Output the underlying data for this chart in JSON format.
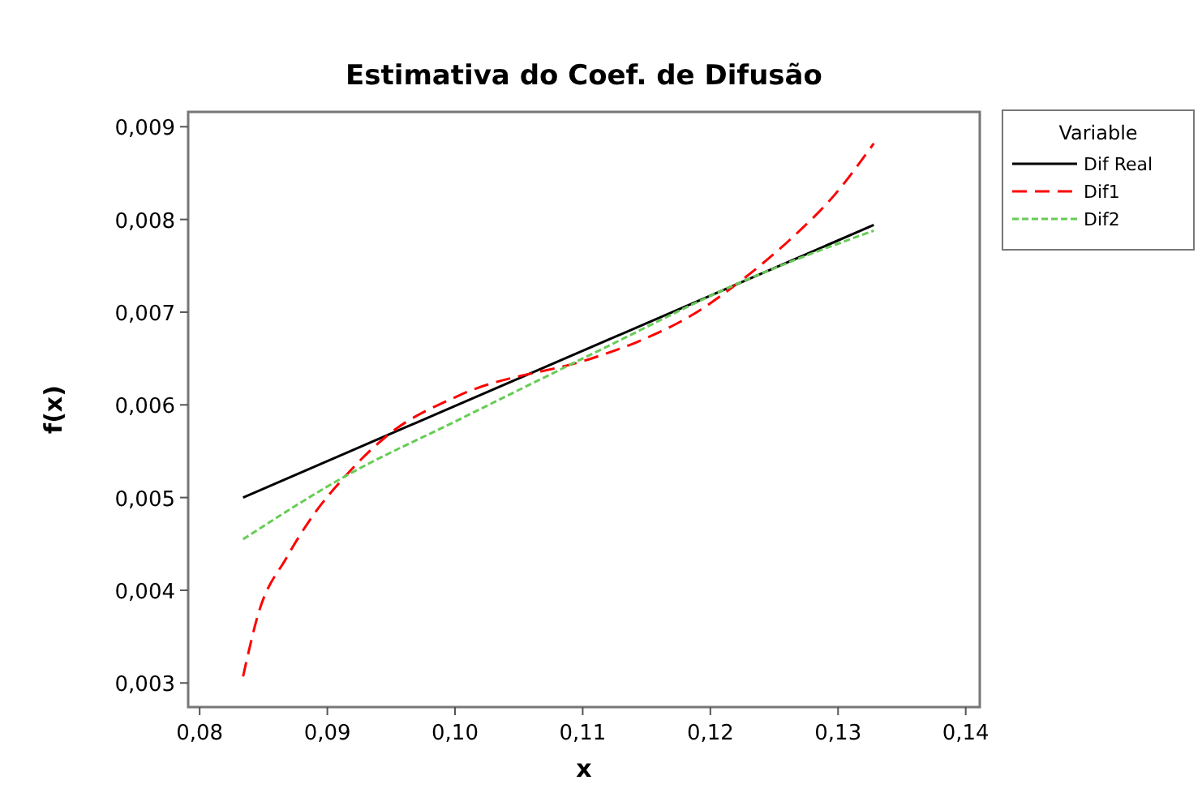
{
  "chart_data": {
    "type": "line",
    "title": "Estimativa do Coef. de Difusão",
    "xlabel": "x",
    "ylabel": "f(x)",
    "legend_title": "Variable",
    "legend": "right",
    "marker": "none",
    "xlim": [
      0.0791,
      0.1411
    ],
    "xticks": [
      {
        "value": 0.08,
        "label": "0,08"
      },
      {
        "value": 0.09,
        "label": "0,09"
      },
      {
        "value": 0.1,
        "label": "0,10"
      },
      {
        "value": 0.11,
        "label": "0,11"
      },
      {
        "value": 0.12,
        "label": "0,12"
      },
      {
        "value": 0.13,
        "label": "0,13"
      },
      {
        "value": 0.14,
        "label": "0,14"
      }
    ],
    "ylim": [
      0.00274,
      0.00916
    ],
    "yticks": [
      {
        "value": 0.003,
        "label": "0,003"
      },
      {
        "value": 0.004,
        "label": "0,004"
      },
      {
        "value": 0.005,
        "label": "0,005"
      },
      {
        "value": 0.006,
        "label": "0,006"
      },
      {
        "value": 0.007,
        "label": "0,007"
      },
      {
        "value": 0.008,
        "label": "0,008"
      },
      {
        "value": 0.009,
        "label": "0,009"
      }
    ],
    "series": [
      {
        "name": "Dif Real",
        "color": "#000000",
        "line_style": "solid",
        "x": [
          0.0834,
          0.1328
        ],
        "values": [
          0.005,
          0.00794
        ]
      },
      {
        "name": "Dif1",
        "color": "#ff0000",
        "line_style": "dashed",
        "x": [
          0.0834,
          0.0846,
          0.0868,
          0.0889,
          0.0914,
          0.0948,
          0.1003,
          0.1109,
          0.1143,
          0.1187,
          0.1225,
          0.1263,
          0.1297,
          0.1328
        ],
        "values": [
          0.00307,
          0.00375,
          0.00435,
          0.00481,
          0.00523,
          0.00568,
          0.0061,
          0.00651,
          0.00668,
          0.00698,
          0.00735,
          0.00779,
          0.00826,
          0.00882
        ]
      },
      {
        "name": "Dif2",
        "color": "#66cc55",
        "line_style": "dotted",
        "x": [
          0.0834,
          0.0914,
          0.1003,
          0.1109,
          0.1225,
          0.1328
        ],
        "values": [
          0.00455,
          0.00523,
          0.00584,
          0.00656,
          0.00733,
          0.00788
        ]
      }
    ]
  }
}
